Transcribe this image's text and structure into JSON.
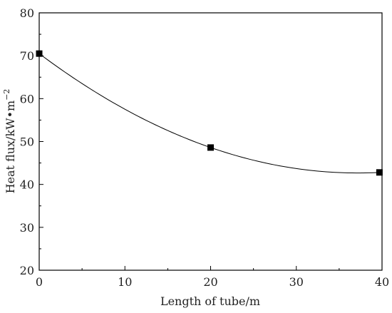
{
  "chart_data": {
    "type": "scatter",
    "xlabel": "Length of tube/m",
    "ylabel": {
      "main": "Heat flux/kW•m",
      "superscript": "−2"
    },
    "xlim": [
      0,
      40
    ],
    "ylim": [
      20,
      80
    ],
    "x_ticks": [
      "0",
      "10",
      "20",
      "30",
      "40"
    ],
    "y_ticks": [
      "20",
      "30",
      "40",
      "50",
      "60",
      "70",
      "80"
    ],
    "grid": false,
    "series": [
      {
        "marker": "square",
        "x": [
          0,
          20,
          39.7
        ],
        "y": [
          70.5,
          48.6,
          42.8
        ]
      }
    ],
    "fit_curve": {
      "type": "quadratic",
      "x_range": [
        0,
        40
      ]
    },
    "colors": {
      "marker": "#000000",
      "line": "#000000",
      "axis": "#000000"
    }
  }
}
